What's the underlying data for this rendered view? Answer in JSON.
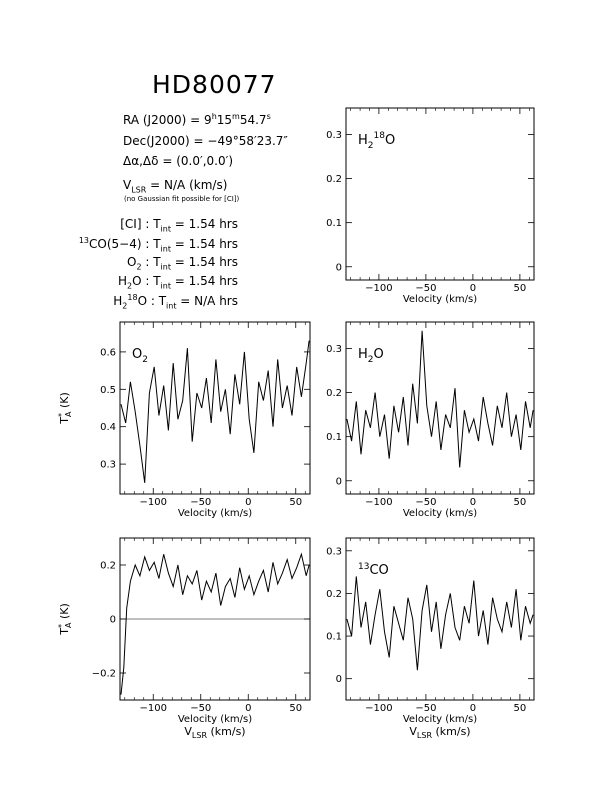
{
  "header": {
    "title": "HD80077",
    "ra": {
      "label": "RA (J2000)",
      "eq": "=",
      "h": "9",
      "h_unit": "h",
      "m": "15",
      "m_unit": "m",
      "s": "54.7",
      "s_unit": "s"
    },
    "dec": {
      "label": "Dec(J2000)",
      "eq": "=",
      "value": "−49°58′23.7″"
    },
    "offset": {
      "label": "Δα,Δδ",
      "eq": "=",
      "value": "(0.0′,0.0′)"
    },
    "vlsr": {
      "label": "V",
      "sub": "LSR",
      "eq": "=",
      "value": "N/A  (km/s)"
    },
    "note": "(no Gaussian fit possible for [CI])",
    "integrations": [
      {
        "pre": "",
        "species": "[CI]",
        "sub": "",
        "sup": "",
        "post": "",
        "tlabel": "T",
        "tsub": "int",
        "value": "= 1.54 hrs"
      },
      {
        "pre": "13",
        "species": "CO(5−4)",
        "sub": "",
        "sup": "",
        "post": "",
        "tlabel": "T",
        "tsub": "int",
        "value": "= 1.54 hrs"
      },
      {
        "pre": "",
        "species": "O",
        "sub": "2",
        "sup": "",
        "post": "",
        "tlabel": "T",
        "tsub": "int",
        "value": "= 1.54 hrs"
      },
      {
        "pre": "",
        "species": "H",
        "sub": "2",
        "sup": "",
        "post": "O",
        "tlabel": "T",
        "tsub": "int",
        "value": "= 1.54 hrs"
      },
      {
        "pre": "",
        "species": "H",
        "sub": "2",
        "sup": "18",
        "post": "O",
        "tlabel": "T",
        "tsub": "int",
        "value": "= N/A  hrs"
      }
    ]
  },
  "chart_data": [
    {
      "id": "h218o",
      "type": "line",
      "label": {
        "base": "H",
        "sub": "2",
        "sup": "18",
        "post": "O"
      },
      "xlabel": "Velocity (km/s)",
      "xlabel2": "",
      "ylabel": "",
      "xlim": [
        -135,
        65
      ],
      "ylim": [
        -0.03,
        0.36
      ],
      "xticks": [
        -100,
        -50,
        0,
        50
      ],
      "yticks": [
        0,
        0.1,
        0.2,
        0.3
      ],
      "x": [],
      "y": []
    },
    {
      "id": "o2",
      "type": "line",
      "label": {
        "base": "O",
        "sub": "2",
        "sup": "",
        "post": ""
      },
      "xlabel": "Velocity (km/s)",
      "xlabel2": "",
      "ylabel": "T*A (K)",
      "xlim": [
        -135,
        65
      ],
      "ylim": [
        0.22,
        0.68
      ],
      "xticks": [
        -100,
        -50,
        0,
        50
      ],
      "yticks": [
        0.3,
        0.4,
        0.5,
        0.6
      ],
      "x": [
        -134,
        -129,
        -124,
        -119,
        -114,
        -109,
        -104,
        -99,
        -94,
        -89,
        -84,
        -79,
        -74,
        -69,
        -64,
        -59,
        -54,
        -49,
        -44,
        -39,
        -34,
        -29,
        -24,
        -19,
        -14,
        -9,
        -4,
        1,
        6,
        11,
        16,
        21,
        26,
        31,
        36,
        41,
        46,
        51,
        56,
        61,
        64
      ],
      "y": [
        0.46,
        0.41,
        0.52,
        0.44,
        0.35,
        0.25,
        0.49,
        0.56,
        0.43,
        0.51,
        0.39,
        0.57,
        0.42,
        0.47,
        0.61,
        0.36,
        0.49,
        0.45,
        0.53,
        0.41,
        0.58,
        0.44,
        0.5,
        0.38,
        0.54,
        0.46,
        0.6,
        0.42,
        0.33,
        0.52,
        0.47,
        0.55,
        0.4,
        0.58,
        0.45,
        0.51,
        0.43,
        0.56,
        0.48,
        0.57,
        0.63
      ]
    },
    {
      "id": "h2o",
      "type": "line",
      "label": {
        "base": "H",
        "sub": "2",
        "sup": "",
        "post": "O"
      },
      "xlabel": "Velocity (km/s)",
      "xlabel2": "",
      "ylabel": "",
      "xlim": [
        -135,
        65
      ],
      "ylim": [
        -0.03,
        0.36
      ],
      "xticks": [
        -100,
        -50,
        0,
        50
      ],
      "yticks": [
        0,
        0.1,
        0.2,
        0.3
      ],
      "x": [
        -134,
        -129,
        -124,
        -119,
        -114,
        -109,
        -104,
        -99,
        -94,
        -89,
        -84,
        -79,
        -74,
        -69,
        -64,
        -59,
        -54,
        -49,
        -44,
        -39,
        -34,
        -29,
        -24,
        -19,
        -14,
        -9,
        -4,
        1,
        6,
        11,
        16,
        21,
        26,
        31,
        36,
        41,
        46,
        51,
        56,
        61,
        64
      ],
      "y": [
        0.14,
        0.09,
        0.18,
        0.06,
        0.16,
        0.12,
        0.2,
        0.1,
        0.15,
        0.05,
        0.17,
        0.11,
        0.19,
        0.08,
        0.22,
        0.13,
        0.34,
        0.17,
        0.1,
        0.18,
        0.07,
        0.15,
        0.12,
        0.21,
        0.03,
        0.16,
        0.11,
        0.14,
        0.09,
        0.19,
        0.13,
        0.08,
        0.17,
        0.12,
        0.2,
        0.1,
        0.15,
        0.07,
        0.18,
        0.12,
        0.16
      ]
    },
    {
      "id": "ci",
      "type": "line",
      "label": {
        "base": "",
        "sub": "",
        "sup": "",
        "post": ""
      },
      "xlabel": "Velocity (km/s)",
      "xlabel2": "V LSR (km/s)",
      "ylabel": "T*A (K)",
      "xlim": [
        -135,
        65
      ],
      "ylim": [
        -0.3,
        0.3
      ],
      "xticks": [
        -100,
        -50,
        0,
        50
      ],
      "yticks": [
        -0.2,
        0,
        0.2
      ],
      "x": [
        -134,
        -131,
        -128,
        -124,
        -119,
        -114,
        -109,
        -104,
        -99,
        -94,
        -89,
        -84,
        -79,
        -74,
        -69,
        -64,
        -59,
        -54,
        -49,
        -44,
        -39,
        -34,
        -29,
        -24,
        -19,
        -14,
        -9,
        -4,
        1,
        6,
        11,
        16,
        21,
        26,
        31,
        36,
        41,
        46,
        51,
        56,
        61,
        64
      ],
      "y": [
        -0.28,
        -0.18,
        0.04,
        0.14,
        0.2,
        0.16,
        0.23,
        0.18,
        0.21,
        0.15,
        0.24,
        0.17,
        0.12,
        0.2,
        0.09,
        0.16,
        0.13,
        0.18,
        0.07,
        0.14,
        0.1,
        0.17,
        0.05,
        0.12,
        0.15,
        0.08,
        0.19,
        0.11,
        0.16,
        0.09,
        0.14,
        0.18,
        0.1,
        0.21,
        0.13,
        0.17,
        0.22,
        0.15,
        0.19,
        0.24,
        0.16,
        0.2
      ]
    },
    {
      "id": "13co",
      "type": "line",
      "label": {
        "base": "",
        "pre": "13",
        "sub": "",
        "sup": "",
        "post": "CO"
      },
      "xlabel": "Velocity (km/s)",
      "xlabel2": "V LSR (km/s)",
      "ylabel": "",
      "xlim": [
        -135,
        65
      ],
      "ylim": [
        -0.05,
        0.33
      ],
      "xticks": [
        -100,
        -50,
        0,
        50
      ],
      "yticks": [
        0,
        0.1,
        0.2,
        0.3
      ],
      "x": [
        -134,
        -129,
        -124,
        -119,
        -114,
        -109,
        -104,
        -99,
        -94,
        -89,
        -84,
        -79,
        -74,
        -69,
        -64,
        -59,
        -54,
        -49,
        -44,
        -39,
        -34,
        -29,
        -24,
        -19,
        -14,
        -9,
        -4,
        1,
        6,
        11,
        16,
        21,
        26,
        31,
        36,
        41,
        46,
        51,
        56,
        61,
        64
      ],
      "y": [
        0.14,
        0.1,
        0.24,
        0.12,
        0.18,
        0.08,
        0.15,
        0.21,
        0.11,
        0.05,
        0.17,
        0.13,
        0.09,
        0.19,
        0.14,
        0.02,
        0.16,
        0.22,
        0.11,
        0.18,
        0.07,
        0.15,
        0.2,
        0.12,
        0.09,
        0.17,
        0.13,
        0.23,
        0.1,
        0.16,
        0.08,
        0.19,
        0.14,
        0.11,
        0.18,
        0.12,
        0.21,
        0.09,
        0.17,
        0.13,
        0.15
      ]
    }
  ]
}
